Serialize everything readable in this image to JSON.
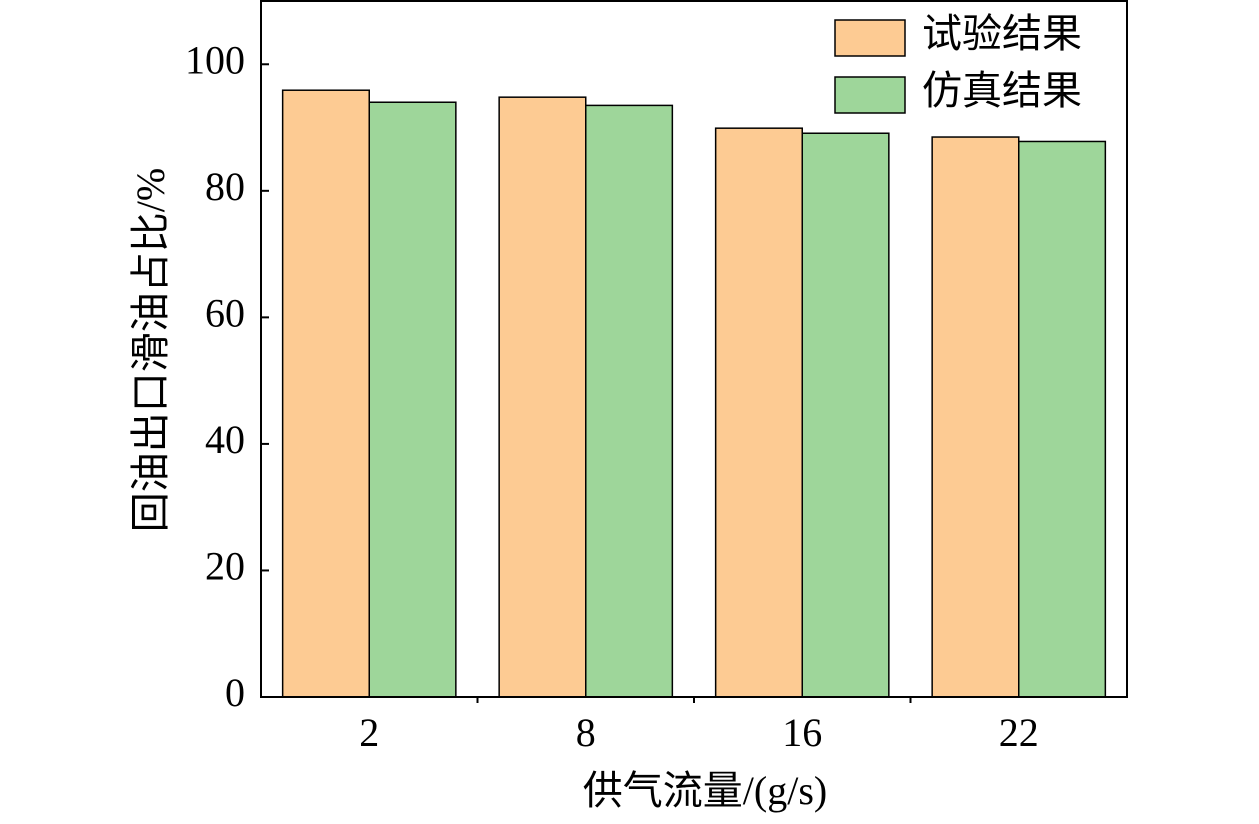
{
  "chart_data": {
    "type": "bar",
    "x_label": "供气流量/(g/s)",
    "y_label": "回油出口滑油占比/%",
    "categories": [
      "2",
      "8",
      "16",
      "22"
    ],
    "series": [
      {
        "name": "试验结果",
        "color": "#fdcb93",
        "values": [
          95.9,
          94.8,
          89.9,
          88.5
        ]
      },
      {
        "name": "仿真结果",
        "color": "#9ed69a",
        "values": [
          94.0,
          93.5,
          89.1,
          87.8
        ]
      }
    ],
    "ylim": [
      0,
      110
    ],
    "yticks": [
      0,
      20,
      40,
      60,
      80,
      100
    ],
    "legend": "upper-right"
  }
}
